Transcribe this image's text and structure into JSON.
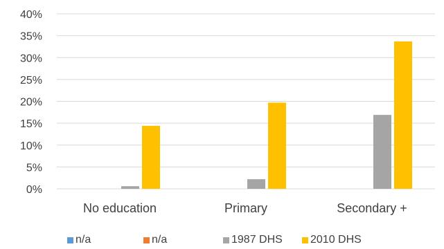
{
  "chart_data": {
    "type": "bar",
    "categories": [
      "No education",
      "Primary",
      "Secondary +"
    ],
    "series": [
      {
        "name": "n/a",
        "color": "#5B9BD5",
        "values": [
          0,
          0,
          0
        ]
      },
      {
        "name": "n/a",
        "color": "#ED7D31",
        "values": [
          0,
          0,
          0
        ]
      },
      {
        "name": "1987 DHS",
        "color": "#A5A5A5",
        "values": [
          0.6,
          2.2,
          16.9
        ]
      },
      {
        "name": "2010 DHS",
        "color": "#FFC000",
        "values": [
          14.4,
          19.7,
          33.7
        ]
      }
    ],
    "title": "",
    "xlabel": "",
    "ylabel": "",
    "ylim": [
      0,
      40
    ],
    "yticks": [
      "0%",
      "5%",
      "10%",
      "15%",
      "20%",
      "25%",
      "30%",
      "35%",
      "40%"
    ],
    "grid": true,
    "legend": "bottom"
  }
}
